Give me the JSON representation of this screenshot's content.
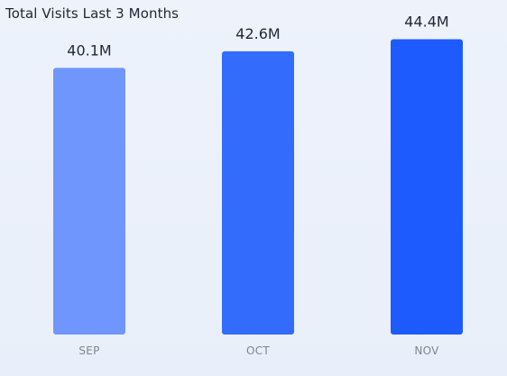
{
  "chart_data": {
    "type": "bar",
    "title": "Total Visits Last 3 Months",
    "categories": [
      "SEP",
      "OCT",
      "NOV"
    ],
    "values": [
      40.1,
      42.6,
      44.4
    ],
    "value_labels": [
      "40.1M",
      "42.6M",
      "44.4M"
    ],
    "bar_colors": [
      "#6f96fd",
      "#336bfd",
      "#1e5bfe"
    ],
    "ylim": [
      0,
      48
    ],
    "grid": false,
    "legend": "none"
  }
}
